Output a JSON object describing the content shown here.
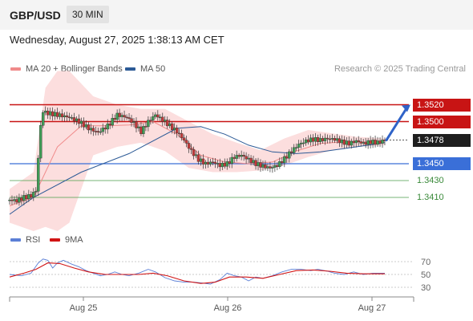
{
  "header": {
    "pair": "GBP/USD",
    "timeframe": "30 MIN"
  },
  "datetime": "Wednesday, August 27, 2025 1:38:13 AM CET",
  "legend": {
    "main": [
      {
        "label": "MA 20 + Bollinger Bands",
        "color": "#f08a8a"
      },
      {
        "label": "MA 50",
        "color": "#2c5a96"
      }
    ],
    "rsi": [
      {
        "label": "RSI",
        "color": "#5b7fd6"
      },
      {
        "label": "9MA",
        "color": "#d11414"
      }
    ]
  },
  "credit": "Research © 2025 Trading Central",
  "colors": {
    "resistance": "#c81414",
    "support_key": "#3a6fd8",
    "support": "#4a9e4a",
    "bull_candle": "#3f9d56",
    "bear_candle": "#c23a3a",
    "last_price": "#222222",
    "arrow": "#2f63c8"
  },
  "chart_data": [
    {
      "type": "candlestick",
      "title": "GBP/USD 30 MIN",
      "x_ticks": [
        "Aug 25",
        "Aug 26",
        "Aug 27"
      ],
      "y_range": [
        1.337,
        1.355
      ],
      "last_price": 1.3478,
      "levels": [
        {
          "value": 1.352,
          "label": "1.3520",
          "kind": "resistance"
        },
        {
          "value": 1.35,
          "label": "1.3500",
          "kind": "resistance"
        },
        {
          "value": 1.3478,
          "label": "1.3478",
          "kind": "last"
        },
        {
          "value": 1.345,
          "label": "1.3450",
          "kind": "support_key"
        },
        {
          "value": 1.343,
          "label": "1.3430",
          "kind": "support"
        },
        {
          "value": 1.341,
          "label": "1.3410",
          "kind": "support"
        }
      ],
      "close_path": [
        [
          0,
          1.3407
        ],
        [
          6,
          1.3406
        ],
        [
          12,
          1.341
        ],
        [
          18,
          1.3412
        ],
        [
          22,
          1.3418
        ],
        [
          26,
          1.3495
        ],
        [
          28,
          1.3512
        ],
        [
          32,
          1.351
        ],
        [
          40,
          1.3508
        ],
        [
          50,
          1.3505
        ],
        [
          58,
          1.35
        ],
        [
          66,
          1.3492
        ],
        [
          74,
          1.3487
        ],
        [
          82,
          1.3495
        ],
        [
          90,
          1.3508
        ],
        [
          98,
          1.3505
        ],
        [
          104,
          1.3498
        ],
        [
          110,
          1.3488
        ],
        [
          116,
          1.35
        ],
        [
          122,
          1.3508
        ],
        [
          128,
          1.3502
        ],
        [
          134,
          1.3495
        ],
        [
          140,
          1.3488
        ],
        [
          146,
          1.3478
        ],
        [
          152,
          1.3465
        ],
        [
          158,
          1.3455
        ],
        [
          164,
          1.345
        ],
        [
          170,
          1.3452
        ],
        [
          176,
          1.3448
        ],
        [
          182,
          1.345
        ],
        [
          188,
          1.3458
        ],
        [
          194,
          1.346
        ],
        [
          200,
          1.3455
        ],
        [
          206,
          1.345
        ],
        [
          212,
          1.3447
        ],
        [
          218,
          1.3445
        ],
        [
          224,
          1.3448
        ],
        [
          230,
          1.3456
        ],
        [
          236,
          1.3465
        ],
        [
          242,
          1.3473
        ],
        [
          248,
          1.3477
        ],
        [
          254,
          1.3479
        ],
        [
          260,
          1.3478
        ],
        [
          266,
          1.348
        ],
        [
          272,
          1.3479
        ],
        [
          278,
          1.3476
        ],
        [
          284,
          1.3474
        ],
        [
          290,
          1.3477
        ],
        [
          296,
          1.3474
        ],
        [
          302,
          1.3476
        ],
        [
          308,
          1.3475
        ],
        [
          314,
          1.3478
        ]
      ],
      "ma50_path": [
        [
          0,
          1.339
        ],
        [
          20,
          1.341
        ],
        [
          60,
          1.344
        ],
        [
          100,
          1.3462
        ],
        [
          140,
          1.3492
        ],
        [
          160,
          1.3494
        ],
        [
          180,
          1.3485
        ],
        [
          200,
          1.3472
        ],
        [
          220,
          1.3464
        ],
        [
          240,
          1.3462
        ],
        [
          260,
          1.3464
        ],
        [
          280,
          1.3468
        ],
        [
          300,
          1.3472
        ],
        [
          314,
          1.3475
        ]
      ],
      "ma20_path": [
        [
          0,
          1.34
        ],
        [
          20,
          1.341
        ],
        [
          40,
          1.347
        ],
        [
          60,
          1.3495
        ],
        [
          80,
          1.3495
        ],
        [
          100,
          1.3496
        ],
        [
          120,
          1.35
        ],
        [
          140,
          1.3485
        ],
        [
          160,
          1.346
        ],
        [
          180,
          1.3452
        ],
        [
          200,
          1.345
        ],
        [
          220,
          1.3452
        ],
        [
          240,
          1.3465
        ],
        [
          260,
          1.3474
        ],
        [
          280,
          1.3476
        ],
        [
          300,
          1.3476
        ],
        [
          314,
          1.3477
        ]
      ],
      "bb_band": [
        [
          0,
          1.338,
          1.342
        ],
        [
          20,
          1.337,
          1.344
        ],
        [
          30,
          1.3375,
          1.354
        ],
        [
          40,
          1.337,
          1.356
        ],
        [
          50,
          1.338,
          1.356
        ],
        [
          60,
          1.342,
          1.3545
        ],
        [
          70,
          1.346,
          1.353
        ],
        [
          90,
          1.347,
          1.352
        ],
        [
          110,
          1.3475,
          1.3515
        ],
        [
          130,
          1.3465,
          1.3515
        ],
        [
          150,
          1.3445,
          1.35
        ],
        [
          170,
          1.344,
          1.3485
        ],
        [
          190,
          1.344,
          1.3475
        ],
        [
          210,
          1.3442,
          1.3466
        ],
        [
          230,
          1.3448,
          1.348
        ],
        [
          250,
          1.3458,
          1.349
        ],
        [
          270,
          1.3466,
          1.3486
        ],
        [
          290,
          1.347,
          1.3482
        ],
        [
          314,
          1.3472,
          1.348
        ]
      ],
      "projection": {
        "from": 1.3478,
        "to": 1.352
      }
    },
    {
      "type": "line",
      "title": "RSI",
      "y_ticks": [
        30,
        50,
        70
      ],
      "rsi": [
        [
          0,
          50
        ],
        [
          10,
          48
        ],
        [
          18,
          52
        ],
        [
          24,
          68
        ],
        [
          28,
          74
        ],
        [
          32,
          72
        ],
        [
          36,
          60
        ],
        [
          40,
          68
        ],
        [
          45,
          72
        ],
        [
          52,
          66
        ],
        [
          58,
          62
        ],
        [
          64,
          56
        ],
        [
          70,
          52
        ],
        [
          76,
          48
        ],
        [
          82,
          50
        ],
        [
          88,
          54
        ],
        [
          94,
          50
        ],
        [
          100,
          48
        ],
        [
          108,
          52
        ],
        [
          116,
          58
        ],
        [
          122,
          54
        ],
        [
          130,
          45
        ],
        [
          138,
          40
        ],
        [
          146,
          38
        ],
        [
          154,
          38
        ],
        [
          160,
          37
        ],
        [
          168,
          35
        ],
        [
          176,
          42
        ],
        [
          182,
          52
        ],
        [
          188,
          48
        ],
        [
          194,
          46
        ],
        [
          200,
          40
        ],
        [
          206,
          46
        ],
        [
          212,
          44
        ],
        [
          220,
          48
        ],
        [
          228,
          54
        ],
        [
          236,
          58
        ],
        [
          244,
          58
        ],
        [
          252,
          56
        ],
        [
          258,
          58
        ],
        [
          266,
          55
        ],
        [
          272,
          52
        ],
        [
          280,
          50
        ],
        [
          288,
          54
        ],
        [
          296,
          50
        ],
        [
          304,
          52
        ],
        [
          314,
          52
        ]
      ],
      "ma9": [
        [
          0,
          46
        ],
        [
          12,
          52
        ],
        [
          22,
          58
        ],
        [
          32,
          68
        ],
        [
          42,
          67
        ],
        [
          54,
          60
        ],
        [
          66,
          54
        ],
        [
          80,
          50
        ],
        [
          94,
          50
        ],
        [
          108,
          50
        ],
        [
          120,
          52
        ],
        [
          132,
          48
        ],
        [
          146,
          40
        ],
        [
          160,
          36
        ],
        [
          172,
          38
        ],
        [
          184,
          46
        ],
        [
          198,
          46
        ],
        [
          212,
          44
        ],
        [
          226,
          50
        ],
        [
          240,
          56
        ],
        [
          254,
          57
        ],
        [
          268,
          55
        ],
        [
          282,
          52
        ],
        [
          296,
          51
        ],
        [
          314,
          51
        ]
      ]
    }
  ]
}
